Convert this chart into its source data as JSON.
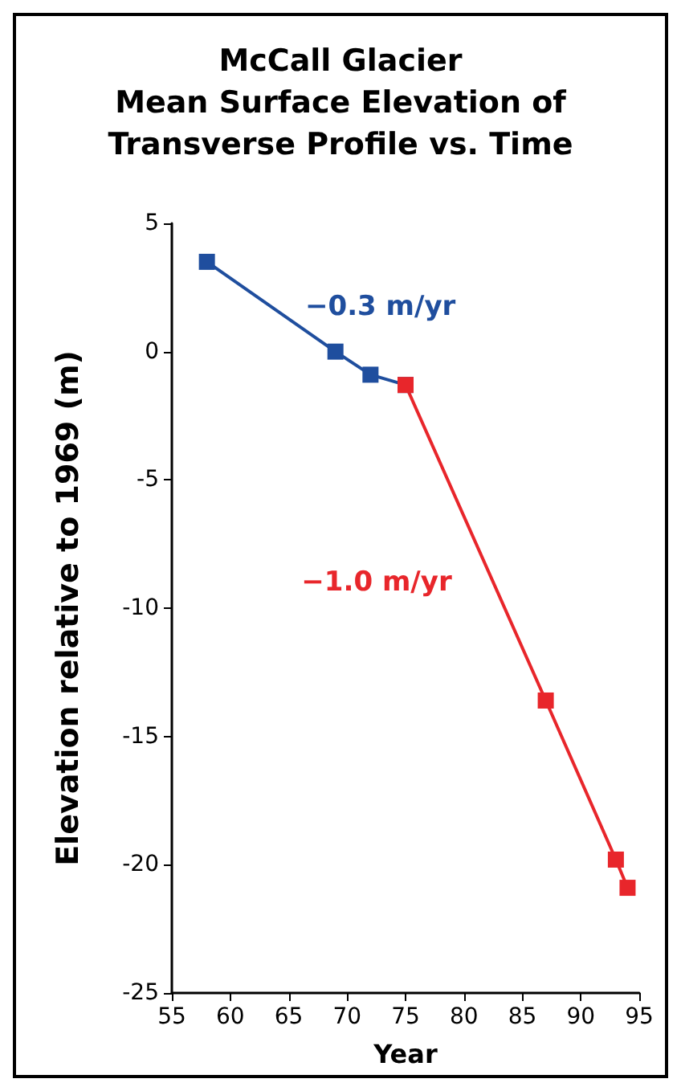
{
  "chart_data": {
    "type": "line",
    "title": "McCall Glacier\nMean Surface Elevation of\nTransverse Profile vs. Time",
    "xlabel": "Year",
    "ylabel": "Elevation relative to 1969 (m)",
    "series": [
      {
        "color": "#1f4e9e",
        "x": [
          58,
          69,
          72,
          75
        ],
        "values": [
          3.5,
          0,
          -0.9,
          -1.3
        ]
      },
      {
        "color": "#e8262b",
        "x": [
          75,
          87,
          93,
          94
        ],
        "values": [
          -1.3,
          -13.6,
          -19.8,
          -20.9
        ]
      }
    ],
    "annotations": [
      "−0.3 m/yr",
      "−1.0 m/yr"
    ],
    "xlim": [
      55,
      95
    ],
    "xticks": [
      55,
      60,
      65,
      70,
      75,
      80,
      85,
      90,
      95
    ],
    "ylim": [
      -25,
      5
    ],
    "yticks": [
      -25,
      -20,
      -15,
      -10,
      -5,
      0,
      5
    ],
    "grid": false,
    "marker": "square",
    "line_style": "solid"
  }
}
